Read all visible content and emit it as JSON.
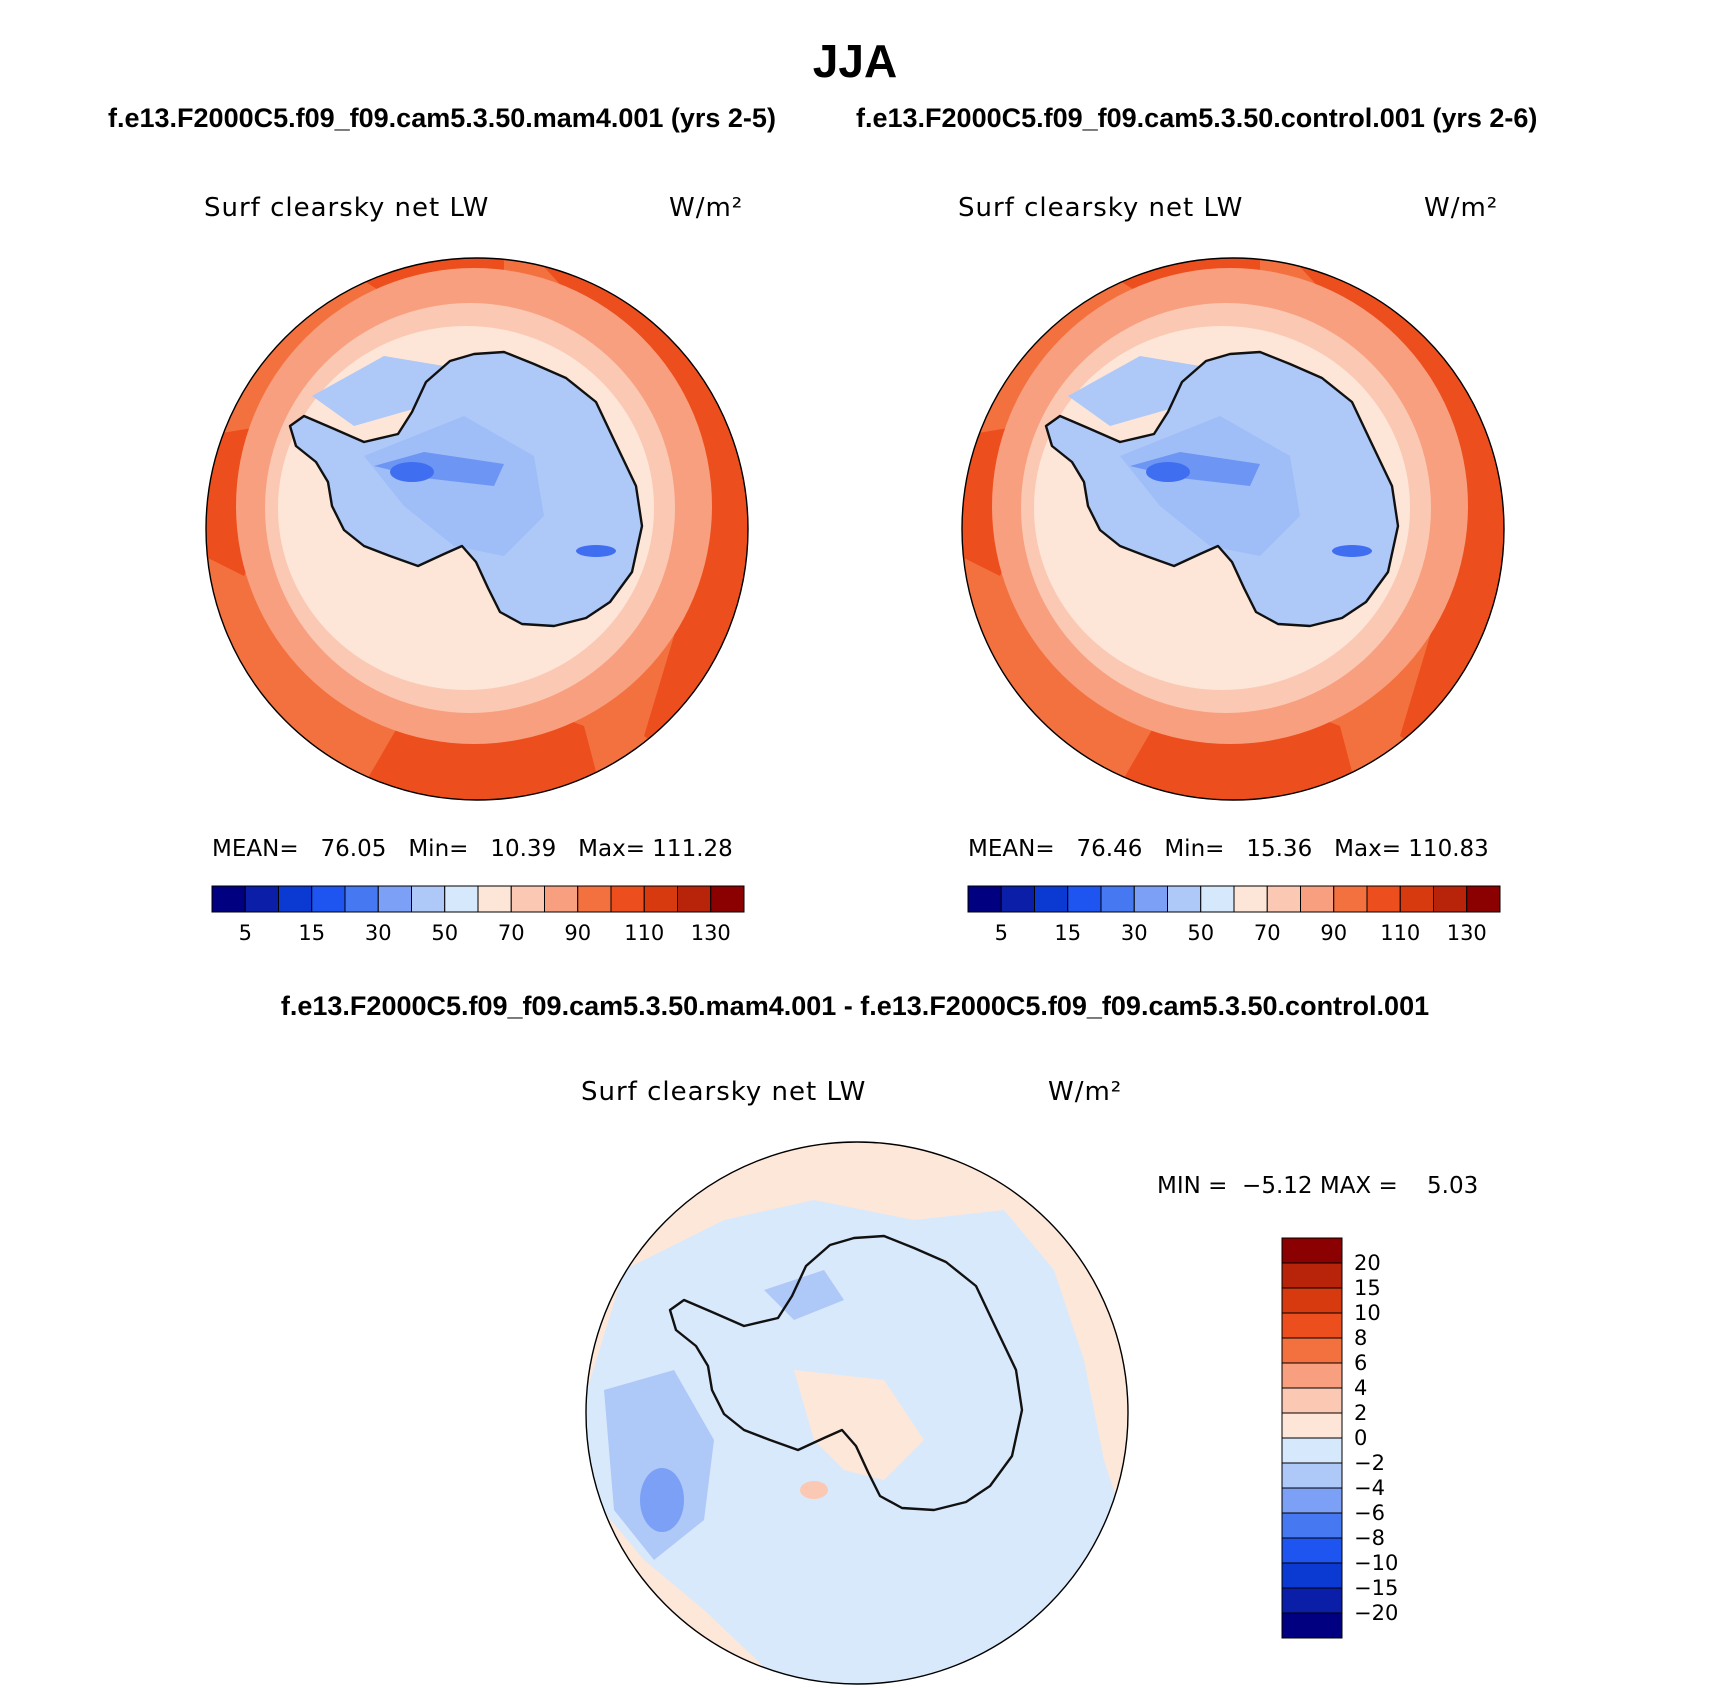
{
  "title": "JJA",
  "case_a_title": "f.e13.F2000C5.f09_f09.cam5.3.50.mam4.001 (yrs 2-5)",
  "case_b_title": "f.e13.F2000C5.f09_f09.cam5.3.50.control.001 (yrs 2-6)",
  "diff_title": "f.e13.F2000C5.f09_f09.cam5.3.50.mam4.001 - f.e13.F2000C5.f09_f09.cam5.3.50.control.001",
  "colors": {
    "levels": [
      "#000080",
      "#0a1ea8",
      "#0b3ad3",
      "#1e55f0",
      "#4678f2",
      "#7ba0f5",
      "#aec8f8",
      "#d6e8fb",
      "#fde6d8",
      "#fbc9b3",
      "#f89f7f",
      "#f3713f",
      "#ec4f1d",
      "#d63a0e",
      "#b8240a",
      "#8b0000"
    ],
    "coast": "#111111",
    "ice_high": "#9fbdf7",
    "ice_mid": "#6d95f3",
    "ice_low": "#3f6ef0"
  },
  "chart_data": [
    {
      "type": "polar-contour-map",
      "panel": "case_a",
      "title": "Surf clearsky net LW",
      "units": "W/m²",
      "mean_label": "MEAN=",
      "mean": "76.05",
      "min_label": "Min=",
      "min": "10.39",
      "max_label": "Max=",
      "max": "111.28",
      "colorbar_orientation": "horizontal",
      "contour_levels": [
        5,
        10,
        15,
        20,
        30,
        40,
        50,
        60,
        70,
        80,
        90,
        100,
        110,
        120,
        130
      ],
      "colorbar_labels": [
        "5",
        "15",
        "30",
        "50",
        "70",
        "90",
        "110",
        "130"
      ]
    },
    {
      "type": "polar-contour-map",
      "panel": "case_b",
      "title": "Surf clearsky net LW",
      "units": "W/m²",
      "mean_label": "MEAN=",
      "mean": "76.46",
      "min_label": "Min=",
      "min": "15.36",
      "max_label": "Max=",
      "max": "110.83",
      "colorbar_orientation": "horizontal",
      "contour_levels": [
        5,
        10,
        15,
        20,
        30,
        40,
        50,
        60,
        70,
        80,
        90,
        100,
        110,
        120,
        130
      ],
      "colorbar_labels": [
        "5",
        "15",
        "30",
        "50",
        "70",
        "90",
        "110",
        "130"
      ]
    },
    {
      "type": "polar-contour-map",
      "panel": "difference",
      "title": "Surf clearsky net LW",
      "units": "W/m²",
      "min_label": "MIN =",
      "min": "−5.12",
      "max_label": "MAX =",
      "max": "5.03",
      "colorbar_orientation": "vertical",
      "contour_levels": [
        -20,
        -15,
        -10,
        -8,
        -6,
        -4,
        -2,
        0,
        2,
        4,
        6,
        8,
        10,
        15,
        20
      ],
      "colorbar_labels": [
        "20",
        "15",
        "10",
        "8",
        "6",
        "4",
        "2",
        "0",
        "−2",
        "−4",
        "−6",
        "−8",
        "−10",
        "−15",
        "−20"
      ]
    }
  ]
}
